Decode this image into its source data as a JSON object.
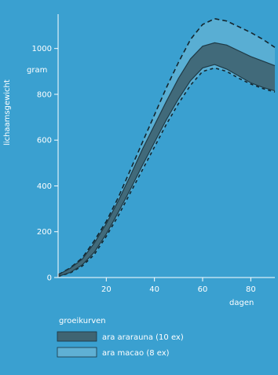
{
  "chart_data": {
    "type": "area",
    "ylabel": "lichaamsgewicht",
    "yunit": "gram",
    "xlabel": "dagen",
    "x_ticks": [
      20,
      40,
      60,
      80
    ],
    "y_ticks": [
      0,
      200,
      400,
      600,
      800,
      1000
    ],
    "xlim": [
      0,
      90
    ],
    "ylim": [
      0,
      1150
    ],
    "grid": false,
    "legend": {
      "title": "groeikurven",
      "position": "bottom-left",
      "entries": [
        {
          "label": "ara ararauna (10 ex)",
          "color": "#3f6472"
        },
        {
          "label": "ara macao (8 ex)",
          "color": "#5fb0d4"
        }
      ]
    },
    "series": [
      {
        "name": "ara ararauna (10 ex)",
        "color": "#3f6472",
        "x": [
          0,
          5,
          10,
          15,
          20,
          25,
          30,
          35,
          40,
          45,
          50,
          55,
          60,
          65,
          70,
          75,
          80,
          85,
          90
        ],
        "lower": [
          5,
          22,
          55,
          110,
          190,
          285,
          385,
          490,
          590,
          690,
          780,
          860,
          915,
          930,
          910,
          880,
          850,
          830,
          815
        ],
        "upper": [
          12,
          40,
          80,
          150,
          235,
          335,
          445,
          560,
          665,
          770,
          870,
          955,
          1010,
          1025,
          1015,
          990,
          965,
          945,
          925
        ]
      },
      {
        "name": "ara macao (8 ex)",
        "color": "#5fb0d4",
        "x": [
          0,
          5,
          10,
          15,
          20,
          25,
          30,
          35,
          40,
          45,
          50,
          55,
          60,
          65,
          70,
          75,
          80,
          85,
          90
        ],
        "lower": [
          5,
          20,
          50,
          100,
          180,
          270,
          370,
          470,
          570,
          670,
          760,
          840,
          900,
          915,
          900,
          870,
          845,
          825,
          810
        ],
        "upper": [
          12,
          42,
          85,
          160,
          245,
          350,
          470,
          590,
          710,
          830,
          940,
          1040,
          1105,
          1130,
          1120,
          1095,
          1070,
          1040,
          1005
        ]
      }
    ]
  }
}
